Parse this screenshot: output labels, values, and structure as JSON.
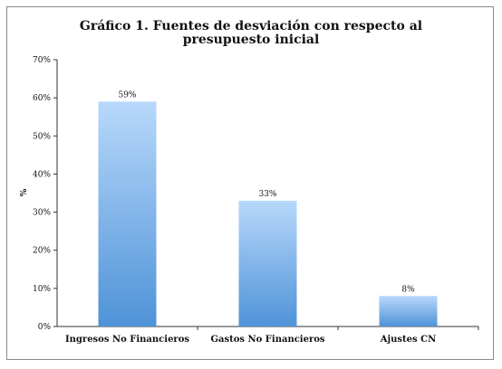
{
  "chart_data": {
    "type": "bar",
    "title": "Gráfico 1. Fuentes de desviación con respecto al presupuesto inicial",
    "xlabel": "",
    "ylabel": "%",
    "ylim": [
      0,
      70
    ],
    "yticks": [
      "0%",
      "10%",
      "20%",
      "30%",
      "40%",
      "50%",
      "60%",
      "70%"
    ],
    "ytick_values": [
      0,
      10,
      20,
      30,
      40,
      50,
      60,
      70
    ],
    "categories": [
      "Ingresos No Financieros",
      "Gastos No Financieros",
      "Ajustes CN"
    ],
    "values": [
      59,
      33,
      8
    ],
    "data_labels": [
      "59%",
      "33%",
      "8%"
    ],
    "grid": false,
    "legend": "none",
    "colors": {
      "bar_top": "#b8d8fb",
      "bar_bottom": "#4f93d8",
      "axis": "#333333",
      "frame": "#8a8a8a"
    }
  }
}
